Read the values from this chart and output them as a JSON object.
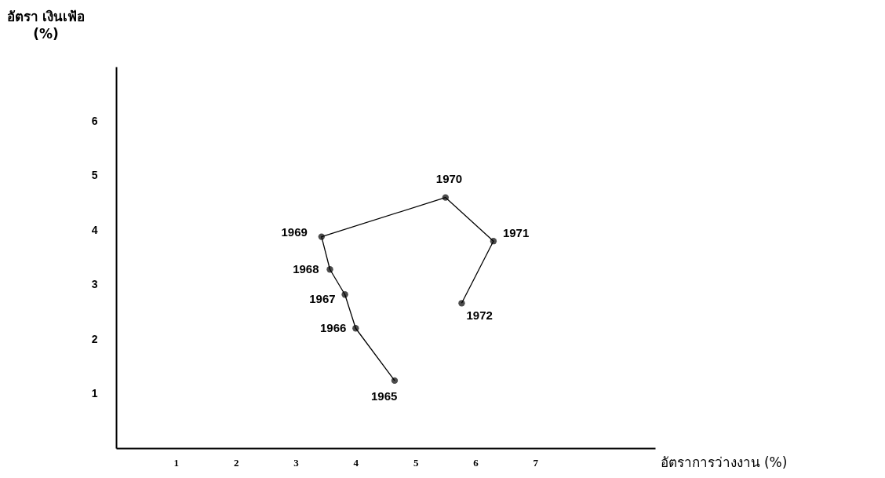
{
  "chart_data": {
    "type": "line",
    "xlabel": "อัตราการว่างงาน (%)",
    "ylabel": "อัตรา เงินเฟ้อ (%)",
    "x": [
      4.65,
      4.0,
      3.82,
      3.57,
      3.43,
      5.5,
      6.3,
      5.77
    ],
    "series": [
      {
        "color": "#000000",
        "values": [
          1.24,
          2.2,
          2.82,
          3.28,
          3.88,
          4.6,
          3.8,
          2.66
        ]
      }
    ],
    "xlim": [
      0,
      9
    ],
    "xticks": [
      1,
      2,
      3,
      4,
      5,
      6,
      7
    ],
    "ylim": [
      0,
      7
    ],
    "yticks": [
      1,
      2,
      3,
      4,
      5,
      6
    ],
    "marker": "circle",
    "line_style": "solid",
    "grid": false,
    "legend": false,
    "annotations": [
      {
        "text": "1965",
        "x": 4.65,
        "y": 1.24
      },
      {
        "text": "1966",
        "x": 4.0,
        "y": 2.2
      },
      {
        "text": "1967",
        "x": 3.82,
        "y": 2.82
      },
      {
        "text": "1968",
        "x": 3.57,
        "y": 3.28
      },
      {
        "text": "1969",
        "x": 3.43,
        "y": 3.88
      },
      {
        "text": "1970",
        "x": 5.5,
        "y": 4.6
      },
      {
        "text": "1971",
        "x": 6.3,
        "y": 3.8
      },
      {
        "text": "1972",
        "x": 5.77,
        "y": 2.66
      }
    ]
  }
}
